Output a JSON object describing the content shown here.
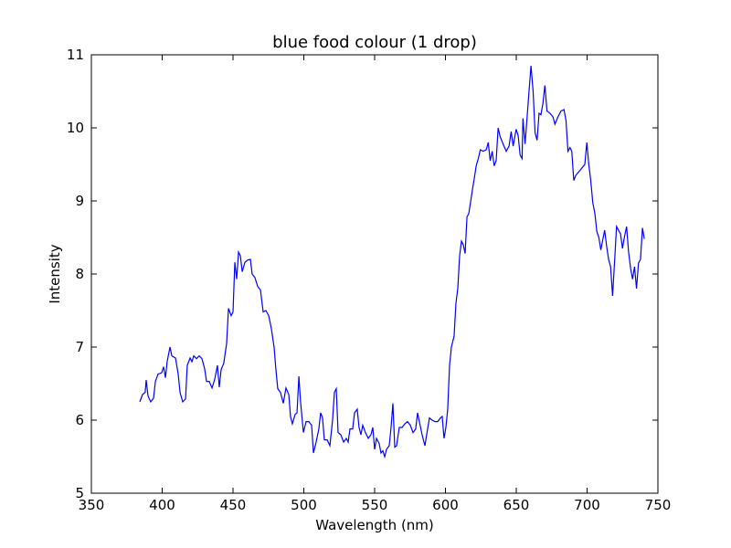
{
  "chart_data": {
    "type": "line",
    "title": "blue food colour (1 drop)",
    "x_label": "Wavelength (nm)",
    "y_label": "Intensity",
    "xlim": [
      350,
      750
    ],
    "xticks": [
      350,
      400,
      450,
      500,
      550,
      600,
      650,
      700,
      750
    ],
    "ylim": [
      5,
      11
    ],
    "yticks": [
      5,
      6,
      7,
      8,
      9,
      10,
      11
    ],
    "series": [
      {
        "color": "#0000ff",
        "x": [
          384.2,
          386.1,
          388,
          388.7,
          390,
          391.9,
          393.9,
          395.2,
          397.1,
          399.7,
          401,
          402.3,
          403.5,
          405.5,
          406.8,
          409.4,
          411.3,
          412.6,
          414.5,
          416.5,
          417.7,
          419.7,
          421,
          422.3,
          424.2,
          426.1,
          428.1,
          430,
          431.3,
          433.2,
          435.2,
          437.1,
          439,
          440.3,
          441.6,
          443.5,
          445.5,
          446.8,
          448.7,
          450,
          451.3,
          452.6,
          453.9,
          455.2,
          456.5,
          458.4,
          460.3,
          462.3,
          463.5,
          465.5,
          467.4,
          469.4,
          471.3,
          473.2,
          475.2,
          477.1,
          479,
          480.3,
          481.6,
          483.5,
          485.5,
          487.4,
          489.4,
          490.6,
          491.9,
          493.9,
          495.2,
          496.5,
          497.7,
          499.7,
          501.6,
          503.5,
          505.5,
          506.8,
          508.7,
          510.6,
          511.9,
          513.2,
          514.5,
          516.5,
          518.4,
          520.3,
          521.6,
          522.9,
          524.2,
          526.1,
          528.1,
          530,
          531.3,
          532.6,
          534.5,
          535.8,
          537.7,
          539,
          540.3,
          541.6,
          543.5,
          545.5,
          547.4,
          548.7,
          550,
          551.3,
          553.2,
          554.5,
          555.8,
          557.1,
          558.4,
          560.3,
          561.6,
          562.9,
          564.2,
          565.5,
          567.4,
          569.4,
          571.3,
          573.2,
          575.2,
          577.1,
          579,
          580.3,
          581.6,
          583.5,
          585.5,
          587.4,
          588.7,
          590.6,
          592.6,
          594.5,
          596.5,
          597.7,
          599,
          600.3,
          601.6,
          602.9,
          604.2,
          606.1,
          607.4,
          608.7,
          610,
          611.3,
          612.6,
          613.9,
          615.2,
          616.5,
          617.7,
          619,
          620.3,
          621.7,
          623.2,
          624.6,
          626.6,
          628.8,
          630.2,
          631.6,
          633,
          634.4,
          635.8,
          637.2,
          638.6,
          640.7,
          642.9,
          644.9,
          646.4,
          647.8,
          649.9,
          651.3,
          652.7,
          654.1,
          654.7,
          656.2,
          657.6,
          659,
          660.4,
          661.9,
          663.3,
          664.7,
          666.1,
          667.4,
          668.8,
          670.2,
          671.7,
          673.8,
          675.9,
          677.3,
          679.4,
          681.6,
          683.7,
          685.1,
          686.5,
          687.9,
          689.2,
          690.6,
          692,
          694.2,
          696.3,
          698.4,
          699.8,
          701.2,
          702.6,
          704,
          705.5,
          706.9,
          708.3,
          709.7,
          710.9,
          712.4,
          713.8,
          715.2,
          716.6,
          718,
          719.3,
          720.8,
          722.2,
          723.6,
          725,
          726.3,
          727.9,
          729.3,
          730.7,
          732.1,
          733.5,
          734.9,
          736.3,
          737.7,
          739.1,
          740.4
        ],
        "values": [
          6.25,
          6.35,
          6.38,
          6.55,
          6.33,
          6.25,
          6.3,
          6.53,
          6.63,
          6.65,
          6.73,
          6.58,
          6.8,
          7.0,
          6.88,
          6.85,
          6.63,
          6.38,
          6.25,
          6.29,
          6.75,
          6.85,
          6.8,
          6.88,
          6.84,
          6.88,
          6.84,
          6.7,
          6.53,
          6.53,
          6.44,
          6.56,
          6.75,
          6.45,
          6.69,
          6.78,
          7.05,
          7.53,
          7.43,
          7.48,
          8.16,
          7.93,
          8.3,
          8.25,
          8.03,
          8.16,
          8.19,
          8.2,
          8.0,
          7.95,
          7.83,
          7.78,
          7.48,
          7.5,
          7.43,
          7.25,
          7.0,
          6.69,
          6.43,
          6.38,
          6.23,
          6.44,
          6.35,
          6.05,
          5.95,
          6.08,
          6.1,
          6.6,
          6.25,
          5.83,
          5.98,
          5.98,
          5.93,
          5.55,
          5.7,
          5.88,
          6.1,
          6.03,
          5.73,
          5.73,
          5.65,
          6.0,
          6.38,
          6.43,
          5.83,
          5.8,
          5.7,
          5.75,
          5.7,
          5.88,
          5.88,
          6.1,
          6.15,
          5.9,
          5.8,
          5.93,
          5.83,
          5.75,
          5.8,
          5.9,
          5.6,
          5.75,
          5.68,
          5.55,
          5.58,
          5.5,
          5.6,
          5.65,
          5.9,
          6.23,
          5.63,
          5.65,
          5.9,
          5.9,
          5.95,
          5.98,
          5.93,
          5.83,
          5.88,
          6.1,
          5.98,
          5.8,
          5.65,
          5.88,
          6.03,
          6.0,
          5.98,
          5.98,
          6.03,
          6.05,
          5.75,
          5.9,
          6.15,
          6.75,
          7.0,
          7.15,
          7.6,
          7.8,
          8.25,
          8.45,
          8.4,
          8.28,
          8.78,
          8.83,
          8.98,
          9.15,
          9.3,
          9.48,
          9.58,
          9.7,
          9.68,
          9.7,
          9.8,
          9.55,
          9.68,
          9.48,
          9.55,
          10.0,
          9.88,
          9.78,
          9.68,
          9.75,
          9.95,
          9.75,
          9.98,
          9.9,
          9.63,
          9.58,
          10.13,
          9.78,
          10.13,
          10.5,
          10.85,
          10.5,
          9.93,
          9.83,
          10.2,
          10.18,
          10.33,
          10.58,
          10.23,
          10.2,
          10.15,
          10.05,
          10.15,
          10.23,
          10.25,
          10.1,
          9.68,
          9.73,
          9.68,
          9.28,
          9.35,
          9.4,
          9.45,
          9.5,
          9.8,
          9.5,
          9.28,
          8.98,
          8.83,
          8.58,
          8.5,
          8.33,
          8.45,
          8.6,
          8.38,
          8.2,
          8.1,
          7.7,
          8.13,
          8.65,
          8.6,
          8.55,
          8.35,
          8.5,
          8.65,
          8.3,
          8.08,
          7.93,
          8.1,
          7.8,
          8.15,
          8.2,
          8.63,
          8.48
        ]
      }
    ]
  }
}
